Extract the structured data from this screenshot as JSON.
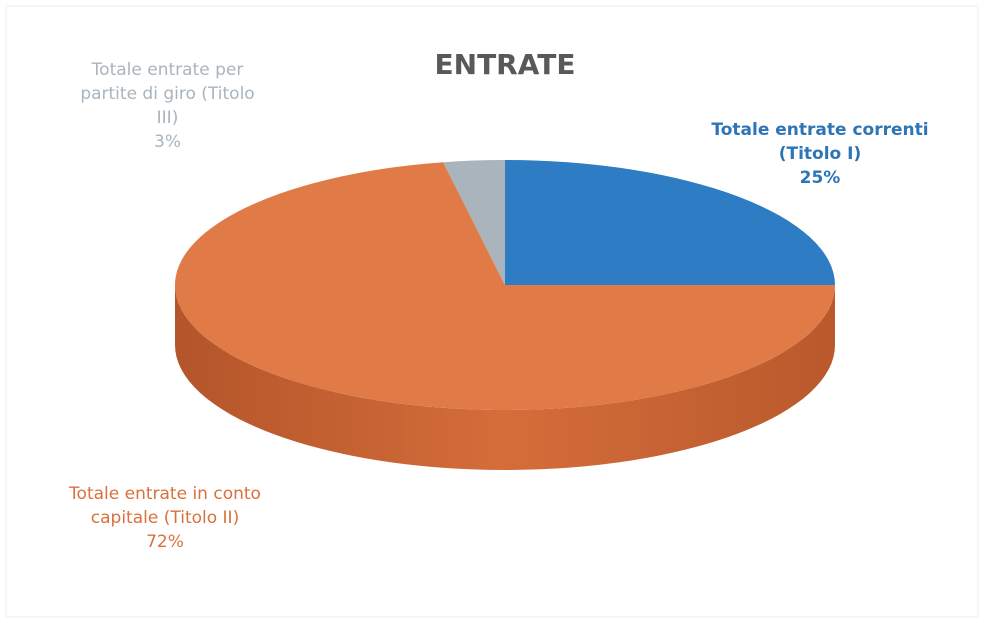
{
  "chart_data": {
    "type": "pie",
    "title": "ENTRATE",
    "categories": [
      "Totale entrate correnti (Titolo I)",
      "Totale entrate in conto capitale (Titolo II)",
      "Totale entrate per partite di giro (Titolo III)"
    ],
    "values": [
      25,
      72,
      3
    ],
    "value_labels": [
      "25%",
      "72%",
      "3%"
    ],
    "colors": [
      "#2e7cc4",
      "#e07b48",
      "#a9b4bc"
    ]
  }
}
